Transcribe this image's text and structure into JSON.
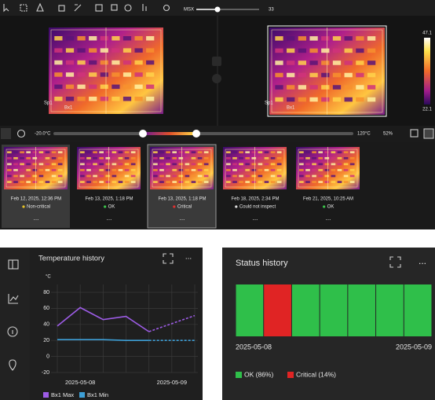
{
  "toolbar": {
    "msx_label": "MSX",
    "msx_value": "33"
  },
  "viewer": {
    "left": {
      "spot": "Sp1",
      "box": "Bx1"
    },
    "right": {
      "spot": "Sp1",
      "box": "Bx1"
    },
    "scale_max": "47.1",
    "scale_min": "22.1"
  },
  "range": {
    "min": "-20.0°C",
    "max": "120°C",
    "zoom": "52%"
  },
  "thumbnails": [
    {
      "date": "Feb 12, 2025, 12:36 PM",
      "status": "Non-critical",
      "status_color": "#e6c229",
      "more": "..."
    },
    {
      "date": "Feb 13, 2025, 1:18 PM",
      "status": "OK",
      "status_color": "#3cc34a",
      "more": "..."
    },
    {
      "date": "Feb 13, 2025, 1:18 PM",
      "status": "Critical",
      "status_color": "#e03030",
      "more": "..."
    },
    {
      "date": "Feb 18, 2025, 2:34 PM",
      "status": "Could not inspect",
      "status_color": "#dddddd",
      "more": "..."
    },
    {
      "date": "Feb 21, 2025, 10:25 AM",
      "status": "OK",
      "status_color": "#3cc34a",
      "more": "..."
    }
  ],
  "chart_data": [
    {
      "type": "line",
      "title": "Temperature history",
      "y_label": "°C",
      "menu": "...",
      "categories": [
        null,
        "2025-05-08",
        null,
        null,
        null,
        "2025-05-09",
        null
      ],
      "ylim": [
        -20,
        80
      ],
      "yticks": [
        -20,
        0,
        20,
        40,
        60,
        80
      ],
      "grid": true,
      "series": [
        {
          "name": "Bx1 Max",
          "color": "#9d5ce6",
          "values": [
            38,
            61,
            46,
            50,
            31,
            null,
            51
          ]
        },
        {
          "name": "Bx1 Min",
          "color": "#3d9fd6",
          "values": [
            21,
            21,
            21,
            20,
            20,
            null,
            20
          ]
        }
      ]
    },
    {
      "type": "status",
      "title": "Status history",
      "menu": "...",
      "categories": [
        "2025-05-08",
        null,
        null,
        null,
        null,
        null,
        "2025-05-09"
      ],
      "series": [
        {
          "name": "OK (86%)",
          "color": "#2fbf4a",
          "values": [
            1,
            0,
            1,
            1,
            1,
            1,
            1
          ]
        },
        {
          "name": "Critical (14%)",
          "color": "#e02424",
          "values": [
            0,
            1,
            0,
            0,
            0,
            0,
            0
          ]
        }
      ]
    }
  ]
}
